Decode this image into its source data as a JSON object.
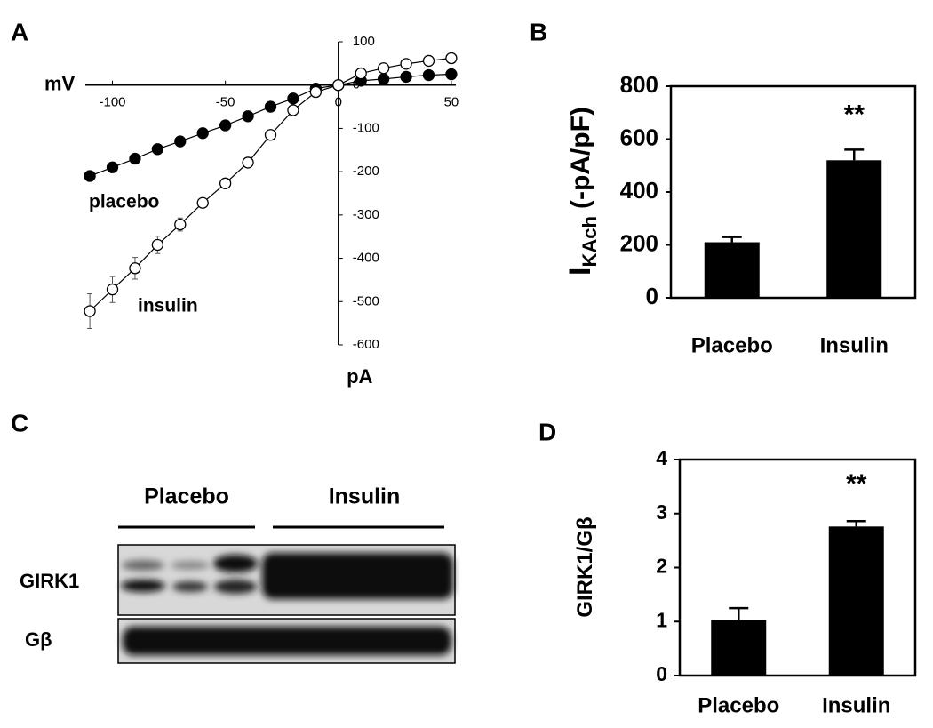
{
  "panel_labels": [
    "A",
    "B",
    "C",
    "D"
  ],
  "chart_data": [
    {
      "type": "line",
      "xlabel": "mV",
      "ylabel": "pA",
      "xlim": [
        -112,
        52
      ],
      "ylim": [
        -600,
        100
      ],
      "xticks": [
        -100,
        -50,
        0,
        50
      ],
      "yticks": [
        100,
        0,
        -100,
        -200,
        -300,
        -400,
        -500,
        -600
      ],
      "x": [
        -110,
        -100,
        -90,
        -80,
        -70,
        -60,
        -50,
        -40,
        -30,
        -20,
        -10,
        0,
        10,
        20,
        30,
        40,
        50
      ],
      "series": [
        {
          "name": "placebo",
          "color": "#000000",
          "marker_fill": "#000000",
          "values": [
            -210,
            -190,
            -170,
            -148,
            -130,
            -111,
            -93,
            -72,
            -50,
            -31,
            -8,
            0,
            10,
            14,
            19,
            23,
            25
          ],
          "errors": [
            12,
            10,
            10,
            8,
            5,
            4,
            4,
            4,
            3,
            3,
            3,
            3,
            3,
            3,
            3,
            3,
            3
          ]
        },
        {
          "name": "insulin",
          "color": "#000000",
          "marker_fill": "#ffffff",
          "values": [
            -522,
            -472,
            -423,
            -369,
            -322,
            -272,
            -227,
            -179,
            -115,
            -58,
            -16,
            0,
            27,
            39,
            49,
            56,
            62
          ],
          "errors": [
            40,
            30,
            25,
            20,
            15,
            10,
            8,
            5,
            5,
            5,
            3,
            3,
            5,
            5,
            5,
            5,
            5
          ]
        }
      ]
    },
    {
      "type": "bar",
      "ylabel": "I",
      "ylabel_subscript": "KAch",
      "ylabel_suffix": "(-pA/pF)",
      "categories": [
        "Placebo",
        "Insulin"
      ],
      "values": [
        210,
        520
      ],
      "errors": [
        20,
        40
      ],
      "color": "#000000",
      "ylim": [
        0,
        800
      ],
      "yticks": [
        0,
        200,
        400,
        600,
        800
      ],
      "annotation": "**"
    },
    {
      "type": "bar",
      "ylabel": "GIRK1/Gβ",
      "categories": [
        "Placebo",
        "Insulin"
      ],
      "values": [
        1.03,
        2.76
      ],
      "errors": [
        0.22,
        0.1
      ],
      "color": "#000000",
      "ylim": [
        0,
        4
      ],
      "yticks": [
        0,
        1,
        2,
        3,
        4
      ],
      "annotation": "**"
    }
  ],
  "blot": {
    "groups": [
      "Placebo",
      "Insulin"
    ],
    "rows": [
      "GIRK1",
      "Gβ"
    ]
  }
}
